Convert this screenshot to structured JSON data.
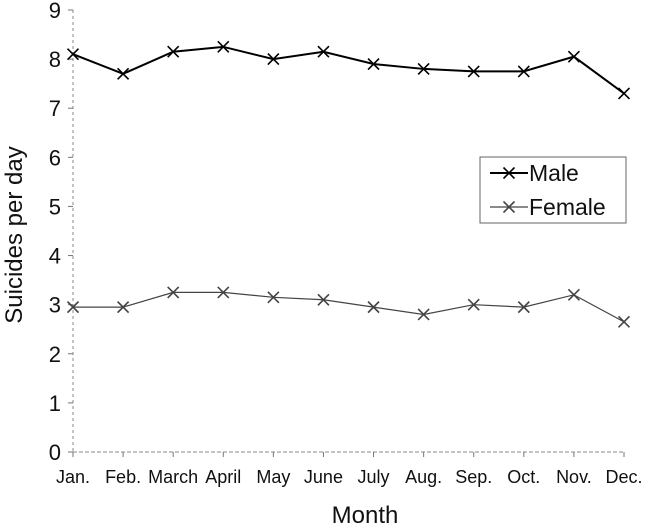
{
  "chart_data": {
    "type": "line",
    "title": "",
    "xlabel": "Month",
    "ylabel": "Suicides per day",
    "categories": [
      "Jan.",
      "Feb.",
      "March",
      "April",
      "May",
      "June",
      "July",
      "Aug.",
      "Sep.",
      "Oct.",
      "Nov.",
      "Dec."
    ],
    "ylim": [
      0,
      9
    ],
    "yticks": [
      0,
      1,
      2,
      3,
      4,
      5,
      6,
      7,
      8,
      9
    ],
    "legend_position": "right",
    "grid": false,
    "series": [
      {
        "name": "Male",
        "values": [
          8.1,
          7.7,
          8.15,
          8.25,
          8.0,
          8.15,
          7.9,
          7.8,
          7.75,
          7.75,
          8.05,
          7.3
        ],
        "color": "#000000",
        "marker": "x"
      },
      {
        "name": "Female",
        "values": [
          2.95,
          2.95,
          3.25,
          3.25,
          3.15,
          3.1,
          2.95,
          2.8,
          3.0,
          2.95,
          3.2,
          2.65
        ],
        "color": "#444444",
        "marker": "x"
      }
    ]
  }
}
